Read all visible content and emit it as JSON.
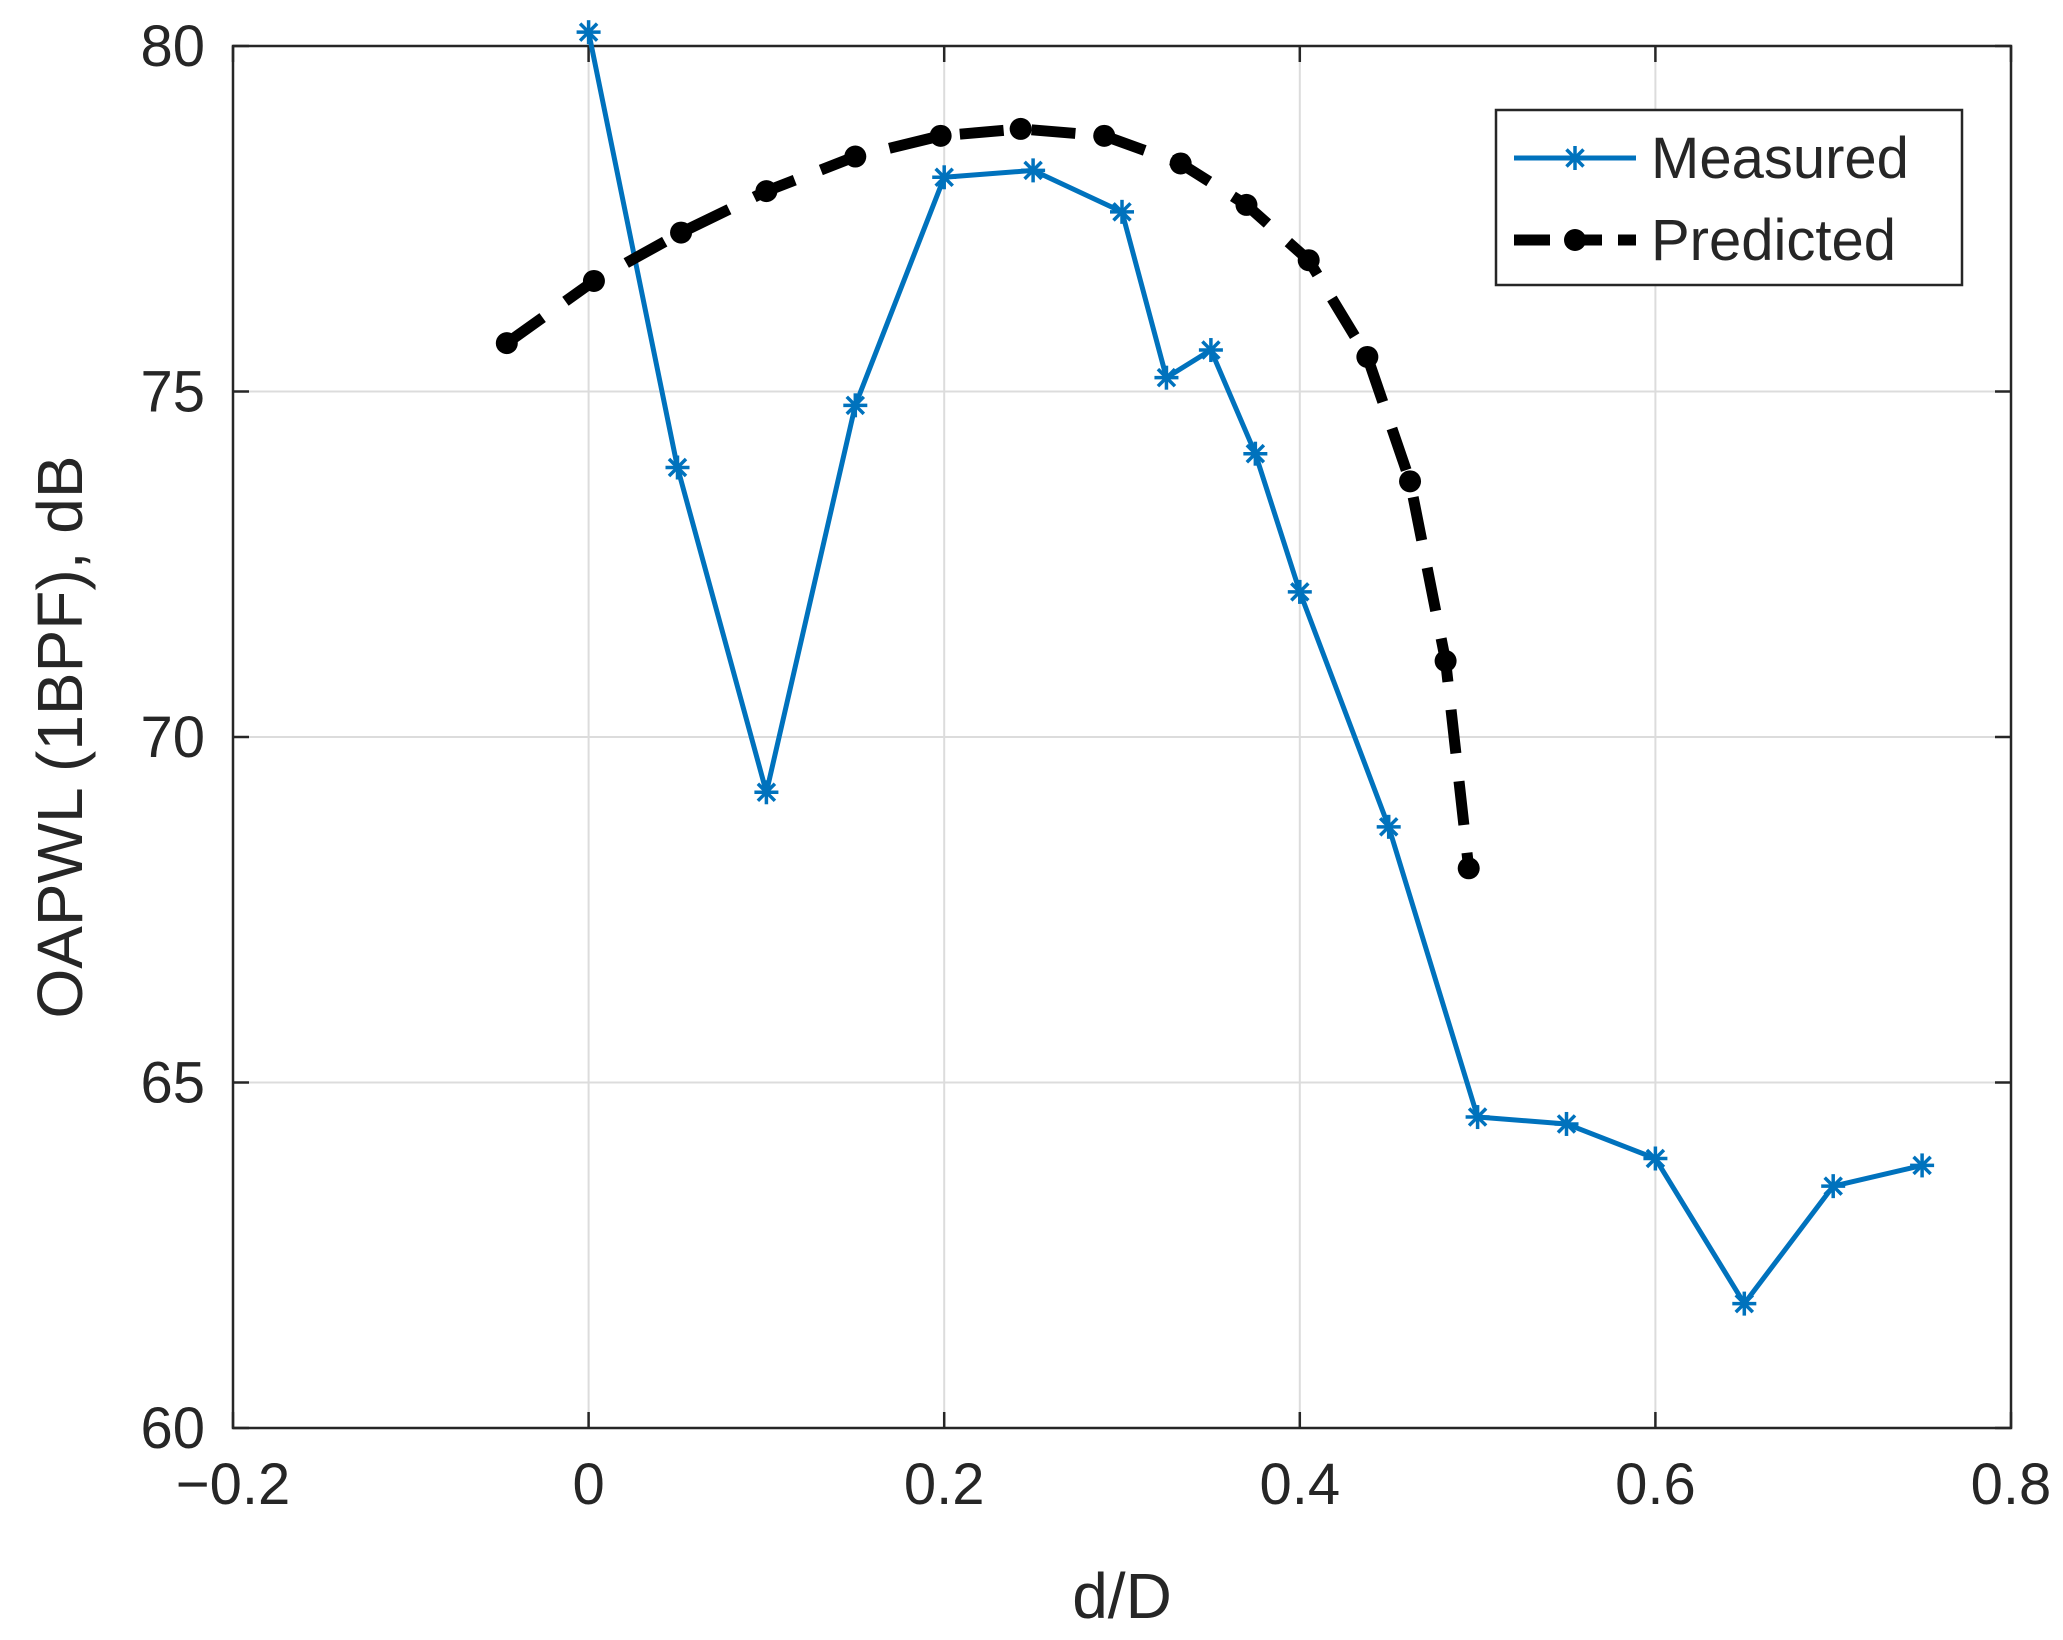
{
  "chart_data": {
    "type": "line",
    "xlabel": "d/D",
    "ylabel": "OAPWL (1BPF), dB",
    "xlim": [
      -0.2,
      0.8
    ],
    "ylim": [
      60,
      80
    ],
    "xticks": [
      -0.2,
      0,
      0.2,
      0.4,
      0.6,
      0.8
    ],
    "xtick_labels": [
      "−0.2",
      "0",
      "0.2",
      "0.4",
      "0.6",
      "0.8"
    ],
    "yticks": [
      60,
      65,
      70,
      75,
      80
    ],
    "ytick_labels": [
      "60",
      "65",
      "70",
      "75",
      "80"
    ],
    "grid": true,
    "legend": {
      "position": "top-right",
      "entries": [
        "Measured",
        "Predicted"
      ]
    },
    "series": [
      {
        "name": "Measured",
        "color": "#0072BD",
        "line_style": "solid",
        "marker": "asterisk",
        "x": [
          0,
          0.05,
          0.1,
          0.15,
          0.2,
          0.25,
          0.3,
          0.325,
          0.35,
          0.375,
          0.4,
          0.45,
          0.5,
          0.55,
          0.6,
          0.65,
          0.7,
          0.75
        ],
        "y": [
          80.2,
          73.9,
          69.2,
          74.8,
          78.1,
          78.2,
          77.6,
          75.2,
          75.6,
          74.1,
          72.1,
          68.7,
          64.5,
          64.4,
          63.9,
          61.8,
          63.5,
          63.8
        ]
      },
      {
        "name": "Predicted",
        "color": "#000000",
        "line_style": "dashed",
        "marker": "dot",
        "x": [
          -0.046,
          0.003,
          0.052,
          0.1,
          0.15,
          0.198,
          0.243,
          0.29,
          0.333,
          0.37,
          0.405,
          0.438,
          0.462,
          0.482,
          0.495
        ],
        "y": [
          75.7,
          76.6,
          77.3,
          77.9,
          78.4,
          78.7,
          78.8,
          78.7,
          78.3,
          77.7,
          76.9,
          75.5,
          73.7,
          71.1,
          68.1
        ]
      }
    ]
  }
}
